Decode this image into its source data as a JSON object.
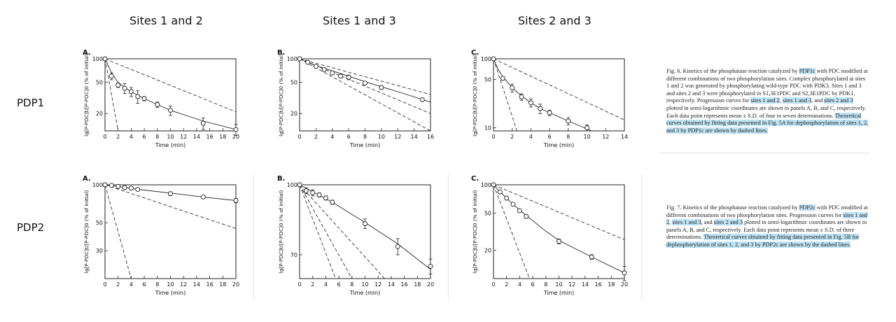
{
  "columns": [
    "Sites 1 and 2",
    "Sites 1 and 3",
    "Sites 2 and 3"
  ],
  "rows": [
    "PDP1",
    "PDP2"
  ],
  "captions": {
    "fig6": [
      {
        "t": "Fig. 6. Kinetics of the phosphatase reaction catalyzed by ",
        "h": false
      },
      {
        "t": "PDP1c",
        "h": true
      },
      {
        "t": " with PDC modified at different combinations of two phosphorylation sites. Complex phosphorylated at sites 1 and 2 was generated by phosphorylating wild-type PDC with PDK3. Sites 1 and 3 and sites 2 and 3 were phosphorylated in S1,3E1PDC and S2,3E1PDC by PDK1, respectively. Progression curves for ",
        "h": false
      },
      {
        "t": "sites 1 and 2",
        "h": true
      },
      {
        "t": ", ",
        "h": false
      },
      {
        "t": "sites 1 and 3",
        "h": true
      },
      {
        "t": ", and ",
        "h": false
      },
      {
        "t": "sites 2 and 3",
        "h": true
      },
      {
        "t": " plotted in semi-logarithmic coordinates are shown in panels A, B, and C, respectively. Each data point represents mean ± S.D. of four to seven determinations. ",
        "h": false
      },
      {
        "t": "Theoretical curves obtained by fitting data presented in Fig. 5A for dephosphorylation of sites 1, 2, and 3 by PDP1c are shown by dashed lines.",
        "h": true
      }
    ],
    "fig7": [
      {
        "t": "Fig. 7. Kinetics of the phosphatase reaction catalyzed by ",
        "h": false
      },
      {
        "t": "PDP2c",
        "h": true
      },
      {
        "t": " with PDC modified at different combinations of two phosphorylation sites. Progression curves for ",
        "h": false
      },
      {
        "t": "sites 1 and 2",
        "h": true
      },
      {
        "t": ", ",
        "h": false
      },
      {
        "t": "sites 1 and 3",
        "h": true
      },
      {
        "t": ", and ",
        "h": false
      },
      {
        "t": "sites 2 and 3",
        "h": true
      },
      {
        "t": " plotted in semi-logarithmic coordinates are shown in panels A, B, and C, respectively. Each data point represents mean ± S.D. of three determinations. ",
        "h": false
      },
      {
        "t": "Theoretical curves obtained by fitting data presented in Fig. 5B for dephosphorylation of sites 1, 2, and 3 by PDP2c are shown by the dashed lines.",
        "h": true
      }
    ]
  },
  "chart_data": [
    {
      "type": "scatter",
      "panel": "A.",
      "row": "PDP1",
      "column": "Sites 1 and 2",
      "xlabel": "Time (min)",
      "ylabel": "lg[P-PDC]t/[P-PDC]0 (% of initial)",
      "xlim": [
        0,
        20
      ],
      "xticks": [
        0,
        2,
        4,
        6,
        8,
        10,
        12,
        14,
        16,
        18,
        20
      ],
      "ylog": true,
      "ylim": [
        12,
        100
      ],
      "yticks": [
        100,
        50,
        20
      ],
      "points": [
        {
          "x": 0,
          "y": 100,
          "err": 0
        },
        {
          "x": 1,
          "y": 60,
          "err": 6
        },
        {
          "x": 2,
          "y": 46,
          "err": 3
        },
        {
          "x": 3,
          "y": 42,
          "err": 6
        },
        {
          "x": 4,
          "y": 38,
          "err": 5
        },
        {
          "x": 5,
          "y": 33,
          "err": 6
        },
        {
          "x": 6,
          "y": 31,
          "err": 2
        },
        {
          "x": 8,
          "y": 26,
          "err": 2
        },
        {
          "x": 10,
          "y": 22,
          "err": 3
        },
        {
          "x": 15,
          "y": 15,
          "err": 2.5
        },
        {
          "x": 20,
          "y": 12.5,
          "err": 2
        }
      ],
      "fit_line": [
        [
          0,
          100
        ],
        [
          1,
          66
        ],
        [
          2,
          50
        ],
        [
          3,
          43
        ],
        [
          4,
          38
        ],
        [
          6,
          31
        ],
        [
          8,
          26
        ],
        [
          10,
          22
        ],
        [
          15,
          16
        ],
        [
          20,
          12.5
        ]
      ],
      "dashed_lines": [
        [
          [
            0,
            100
          ],
          [
            20,
            21
          ]
        ],
        [
          [
            0,
            100
          ],
          [
            2,
            12
          ]
        ]
      ]
    },
    {
      "type": "scatter",
      "panel": "B.",
      "row": "PDP1",
      "column": "Sites 1 and 3",
      "xlabel": "Time (min)",
      "ylabel": "lg[P-PDC]t/[P-PDC]0 (% of initial)",
      "xlim": [
        0,
        16
      ],
      "xticks": [
        0,
        2,
        4,
        6,
        8,
        10,
        12,
        14,
        16
      ],
      "ylog": true,
      "ylim": [
        12,
        100
      ],
      "yticks": [
        100,
        50,
        20
      ],
      "points": [
        {
          "x": 0,
          "y": 100,
          "err": 0
        },
        {
          "x": 1,
          "y": 90,
          "err": 2
        },
        {
          "x": 2,
          "y": 80,
          "err": 2
        },
        {
          "x": 3,
          "y": 73,
          "err": 2
        },
        {
          "x": 4,
          "y": 66,
          "err": 3
        },
        {
          "x": 5,
          "y": 60,
          "err": 3
        },
        {
          "x": 6,
          "y": 58,
          "err": 4
        },
        {
          "x": 8,
          "y": 49,
          "err": 2
        },
        {
          "x": 10,
          "y": 43,
          "err": 2
        },
        {
          "x": 15,
          "y": 30,
          "err": 1
        }
      ],
      "fit_line": [
        [
          0,
          100
        ],
        [
          2,
          82
        ],
        [
          4,
          70
        ],
        [
          6,
          60
        ],
        [
          8,
          51
        ],
        [
          10,
          44
        ],
        [
          12,
          38
        ],
        [
          16,
          28
        ]
      ],
      "dashed_lines": [
        [
          [
            0,
            100
          ],
          [
            16,
            35
          ]
        ],
        [
          [
            0,
            100
          ],
          [
            16,
            20
          ]
        ],
        [
          [
            0,
            100
          ],
          [
            16,
            12
          ]
        ]
      ]
    },
    {
      "type": "scatter",
      "panel": "C.",
      "row": "PDP1",
      "column": "Sites 2 and 3",
      "xlabel": "Time (min)",
      "ylabel": "lg[P-PDC]t/[P-PDC]0 (% of initial)",
      "xlim": [
        0,
        14
      ],
      "xticks": [
        0,
        2,
        4,
        6,
        8,
        10,
        12,
        14
      ],
      "ylog": true,
      "ylim": [
        9,
        100
      ],
      "yticks": [
        100,
        50,
        10
      ],
      "points": [
        {
          "x": 0,
          "y": 100,
          "err": 0
        },
        {
          "x": 1,
          "y": 52,
          "err": 3
        },
        {
          "x": 2,
          "y": 38,
          "err": 5
        },
        {
          "x": 3,
          "y": 28,
          "err": 3
        },
        {
          "x": 4,
          "y": 23,
          "err": 3
        },
        {
          "x": 5,
          "y": 19,
          "err": 3
        },
        {
          "x": 6,
          "y": 16.5,
          "err": 1.5
        },
        {
          "x": 8,
          "y": 12.5,
          "err": 1.5
        },
        {
          "x": 10,
          "y": 10,
          "err": 1
        }
      ],
      "fit_line": [
        [
          0,
          100
        ],
        [
          0.5,
          70
        ],
        [
          1,
          55
        ],
        [
          2,
          38
        ],
        [
          3,
          29
        ],
        [
          4,
          23
        ],
        [
          5,
          19
        ],
        [
          6,
          16.5
        ],
        [
          8,
          12.5
        ],
        [
          10.5,
          9
        ]
      ],
      "dashed_lines": [
        [
          [
            0,
            100
          ],
          [
            14,
            13
          ]
        ],
        [
          [
            0,
            100
          ],
          [
            2.5,
            9
          ]
        ]
      ]
    },
    {
      "type": "scatter",
      "panel": "A.",
      "row": "PDP2",
      "column": "Sites 1 and 2",
      "xlabel": "Time (min)",
      "ylabel": "lg[P-PDC]t/[P-PDC]0 (% of initial)",
      "xlim": [
        0,
        20
      ],
      "xticks": [
        0,
        2,
        4,
        6,
        8,
        10,
        12,
        14,
        16,
        18,
        20
      ],
      "ylog": true,
      "ylim": [
        18,
        100
      ],
      "yticks": [
        100,
        50,
        30
      ],
      "points": [
        {
          "x": 0,
          "y": 100,
          "err": 0
        },
        {
          "x": 1,
          "y": 99,
          "err": 2
        },
        {
          "x": 2,
          "y": 97,
          "err": 3
        },
        {
          "x": 3,
          "y": 95,
          "err": 3
        },
        {
          "x": 4,
          "y": 94,
          "err": 3
        },
        {
          "x": 5,
          "y": 92,
          "err": 2
        },
        {
          "x": 10,
          "y": 85,
          "err": 3
        },
        {
          "x": 15,
          "y": 80,
          "err": 2
        },
        {
          "x": 20,
          "y": 75,
          "err": 3
        }
      ],
      "fit_line": [
        [
          0,
          100
        ],
        [
          2,
          97
        ],
        [
          5,
          92
        ],
        [
          10,
          86
        ],
        [
          15,
          80
        ],
        [
          20,
          75
        ]
      ],
      "dashed_lines": [
        [
          [
            0,
            100
          ],
          [
            20,
            45
          ]
        ],
        [
          [
            0,
            100
          ],
          [
            4,
            18
          ]
        ]
      ]
    },
    {
      "type": "scatter",
      "panel": "B.",
      "row": "PDP2",
      "column": "Sites 1 and 3",
      "xlabel": "Time (min)",
      "ylabel": "lg[P-PDC]t/[P-PDC]0 (% of initial)",
      "xlim": [
        0,
        20
      ],
      "xticks": [
        0,
        2,
        4,
        6,
        8,
        10,
        12,
        14,
        16,
        18,
        20
      ],
      "ylog": true,
      "ylim": [
        62,
        100
      ],
      "yticks": [
        100,
        70
      ],
      "points": [
        {
          "x": 0,
          "y": 100,
          "err": 0
        },
        {
          "x": 1,
          "y": 97,
          "err": 1.5
        },
        {
          "x": 2,
          "y": 96,
          "err": 1.5
        },
        {
          "x": 3,
          "y": 95,
          "err": 1
        },
        {
          "x": 4,
          "y": 93.5,
          "err": 1
        },
        {
          "x": 5,
          "y": 91.5,
          "err": 1
        },
        {
          "x": 10,
          "y": 82,
          "err": 2
        },
        {
          "x": 15,
          "y": 73,
          "err": 3
        },
        {
          "x": 20,
          "y": 66,
          "err": 2.5
        }
      ],
      "fit_line": [
        [
          0,
          100
        ],
        [
          2,
          96.5
        ],
        [
          5,
          91.5
        ],
        [
          10,
          82.5
        ],
        [
          15,
          74
        ],
        [
          20,
          65
        ]
      ],
      "dashed_lines": [
        [
          [
            0,
            100
          ],
          [
            13,
            62
          ]
        ],
        [
          [
            0,
            100
          ],
          [
            8,
            62
          ]
        ],
        [
          [
            0,
            100
          ],
          [
            5.5,
            62
          ]
        ]
      ]
    },
    {
      "type": "scatter",
      "panel": "C.",
      "row": "PDP2",
      "column": "Sites 2 and 3",
      "xlabel": "Time (min)",
      "ylabel": "lg[P-PDC]t/[P-PDC]0 (% of initial)",
      "xlim": [
        0,
        20
      ],
      "xticks": [
        0,
        2,
        4,
        6,
        8,
        10,
        12,
        14,
        16,
        18,
        20
      ],
      "ylog": true,
      "ylim": [
        10,
        100
      ],
      "yticks": [
        100,
        50,
        20
      ],
      "points": [
        {
          "x": 0,
          "y": 100,
          "err": 0
        },
        {
          "x": 1,
          "y": 84,
          "err": 3
        },
        {
          "x": 2,
          "y": 72,
          "err": 3
        },
        {
          "x": 3,
          "y": 62,
          "err": 2
        },
        {
          "x": 4,
          "y": 53,
          "err": 2
        },
        {
          "x": 5,
          "y": 46,
          "err": 2
        },
        {
          "x": 10,
          "y": 25,
          "err": 1.5
        },
        {
          "x": 15,
          "y": 17,
          "err": 1
        },
        {
          "x": 20,
          "y": 11.5,
          "err": 2
        }
      ],
      "fit_line": [
        [
          0,
          100
        ],
        [
          1,
          84
        ],
        [
          2,
          72
        ],
        [
          3,
          62
        ],
        [
          5,
          47
        ],
        [
          8,
          32
        ],
        [
          10,
          25.5
        ],
        [
          15,
          17
        ],
        [
          20,
          11.5
        ]
      ],
      "dashed_lines": [
        [
          [
            0,
            100
          ],
          [
            20,
            26
          ]
        ],
        [
          [
            0,
            100
          ],
          [
            5.5,
            10
          ]
        ]
      ]
    }
  ]
}
